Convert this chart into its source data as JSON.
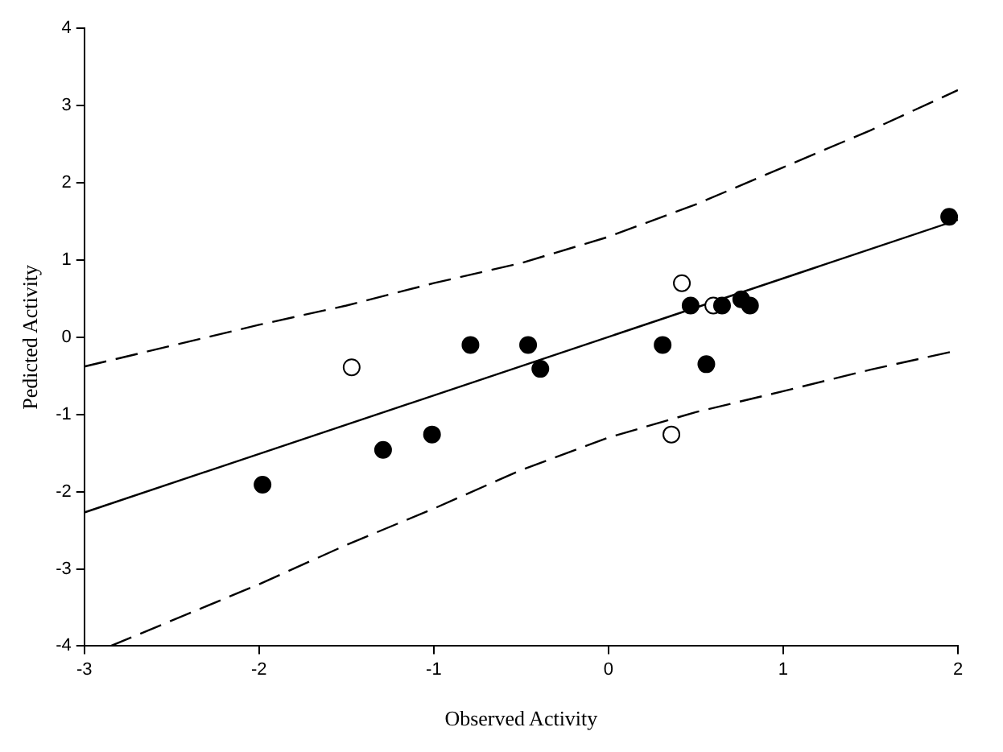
{
  "chart_data": {
    "type": "scatter",
    "xlabel": "Observed Activity",
    "ylabel": "Pedicted Activity",
    "xlim": [
      -3,
      2
    ],
    "ylim": [
      -4,
      4
    ],
    "xticks": [
      -3,
      -2,
      -1,
      0,
      1,
      2
    ],
    "yticks": [
      -4,
      -3,
      -2,
      -1,
      0,
      1,
      2,
      3,
      4
    ],
    "grid": false,
    "legend": false,
    "marker": "circle",
    "series": [
      {
        "color": "#000000",
        "x": [
          -1.98,
          -1.29,
          -1.01,
          -0.79,
          -0.46,
          -0.39,
          0.31,
          0.56,
          0.47,
          0.65,
          0.76,
          0.81,
          1.95
        ],
        "values": [
          -1.91,
          -1.46,
          -1.26,
          -0.1,
          -0.1,
          -0.41,
          -0.1,
          -0.35,
          0.41,
          0.41,
          0.49,
          0.41,
          1.56
        ]
      },
      {
        "color": "#ffffff",
        "x": [
          -1.47,
          0.42,
          0.6,
          0.36
        ],
        "values": [
          -0.39,
          0.7,
          0.41,
          -1.26
        ]
      },
      {
        "type": "line",
        "color": "#000000",
        "marker": "none",
        "line_style": "solid",
        "x": [
          -3,
          2
        ],
        "values": [
          -2.27,
          1.52
        ]
      },
      {
        "type": "line",
        "color": "#000000",
        "marker": "none",
        "line_style": "dashed",
        "x": [
          -3,
          -2,
          -1.5,
          -1,
          -0.5,
          0,
          0.5,
          1,
          1.5,
          2
        ],
        "values": [
          -0.38,
          0.16,
          0.41,
          0.7,
          0.96,
          1.3,
          1.72,
          2.2,
          2.68,
          3.2
        ]
      },
      {
        "type": "line",
        "color": "#000000",
        "marker": "none",
        "line_style": "dashed",
        "x": [
          -2.85,
          -2,
          -1.5,
          -1,
          -0.5,
          0,
          0.5,
          1,
          1.5,
          2
        ],
        "values": [
          -4,
          -3.2,
          -2.69,
          -2.22,
          -1.72,
          -1.3,
          -0.97,
          -0.7,
          -0.42,
          -0.17
        ]
      }
    ]
  }
}
